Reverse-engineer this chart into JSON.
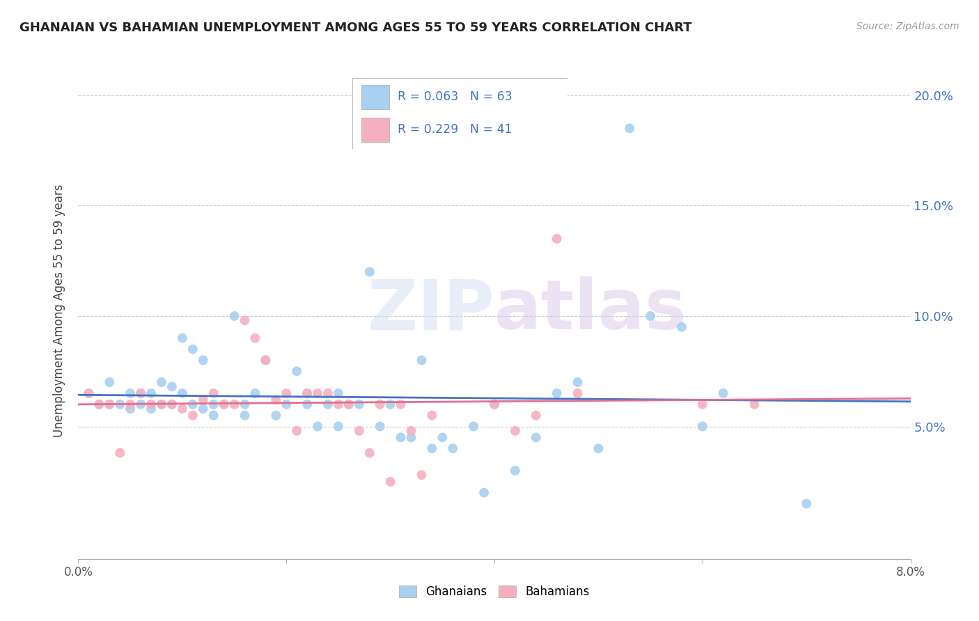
{
  "title": "GHANAIAN VS BAHAMIAN UNEMPLOYMENT AMONG AGES 55 TO 59 YEARS CORRELATION CHART",
  "source": "Source: ZipAtlas.com",
  "ylabel": "Unemployment Among Ages 55 to 59 years",
  "xlim": [
    0.0,
    0.08
  ],
  "ylim": [
    -0.01,
    0.215
  ],
  "yticks": [
    0.05,
    0.1,
    0.15,
    0.2
  ],
  "ytick_labels": [
    "5.0%",
    "10.0%",
    "15.0%",
    "20.0%"
  ],
  "xticks": [
    0.0,
    0.02,
    0.04,
    0.06,
    0.08
  ],
  "ghanaian_color": "#a8d0f0",
  "bahamian_color": "#f5b0c0",
  "ghanaian_line_color": "#4472c4",
  "bahamian_line_color": "#e07090",
  "R_ghanaian": 0.063,
  "N_ghanaian": 63,
  "R_bahamian": 0.229,
  "N_bahamian": 41,
  "watermark_zip": "ZIP",
  "watermark_atlas": "atlas",
  "ghanaian_x": [
    0.001,
    0.002,
    0.003,
    0.003,
    0.004,
    0.005,
    0.005,
    0.006,
    0.006,
    0.007,
    0.007,
    0.008,
    0.008,
    0.009,
    0.009,
    0.01,
    0.01,
    0.011,
    0.011,
    0.012,
    0.012,
    0.013,
    0.013,
    0.014,
    0.015,
    0.016,
    0.016,
    0.017,
    0.018,
    0.019,
    0.02,
    0.021,
    0.022,
    0.022,
    0.023,
    0.024,
    0.025,
    0.025,
    0.026,
    0.027,
    0.028,
    0.029,
    0.03,
    0.031,
    0.032,
    0.033,
    0.034,
    0.035,
    0.036,
    0.038,
    0.039,
    0.04,
    0.042,
    0.044,
    0.046,
    0.048,
    0.05,
    0.053,
    0.055,
    0.058,
    0.06,
    0.062,
    0.07
  ],
  "ghanaian_y": [
    0.065,
    0.06,
    0.07,
    0.06,
    0.06,
    0.065,
    0.058,
    0.065,
    0.06,
    0.065,
    0.058,
    0.07,
    0.06,
    0.068,
    0.06,
    0.09,
    0.065,
    0.085,
    0.06,
    0.08,
    0.058,
    0.06,
    0.055,
    0.06,
    0.1,
    0.06,
    0.055,
    0.065,
    0.08,
    0.055,
    0.06,
    0.075,
    0.06,
    0.065,
    0.05,
    0.06,
    0.065,
    0.05,
    0.06,
    0.06,
    0.12,
    0.05,
    0.06,
    0.045,
    0.045,
    0.08,
    0.04,
    0.045,
    0.04,
    0.05,
    0.02,
    0.06,
    0.03,
    0.045,
    0.065,
    0.07,
    0.04,
    0.185,
    0.1,
    0.095,
    0.05,
    0.065,
    0.015
  ],
  "bahamian_x": [
    0.001,
    0.002,
    0.003,
    0.004,
    0.005,
    0.006,
    0.007,
    0.008,
    0.009,
    0.01,
    0.011,
    0.012,
    0.013,
    0.014,
    0.015,
    0.016,
    0.017,
    0.018,
    0.019,
    0.02,
    0.021,
    0.022,
    0.023,
    0.024,
    0.025,
    0.026,
    0.027,
    0.028,
    0.029,
    0.03,
    0.031,
    0.032,
    0.033,
    0.034,
    0.04,
    0.042,
    0.044,
    0.046,
    0.048,
    0.06,
    0.065
  ],
  "bahamian_y": [
    0.065,
    0.06,
    0.06,
    0.038,
    0.06,
    0.065,
    0.06,
    0.06,
    0.06,
    0.058,
    0.055,
    0.062,
    0.065,
    0.06,
    0.06,
    0.098,
    0.09,
    0.08,
    0.062,
    0.065,
    0.048,
    0.065,
    0.065,
    0.065,
    0.06,
    0.06,
    0.048,
    0.038,
    0.06,
    0.025,
    0.06,
    0.048,
    0.028,
    0.055,
    0.06,
    0.048,
    0.055,
    0.135,
    0.065,
    0.06,
    0.06
  ]
}
